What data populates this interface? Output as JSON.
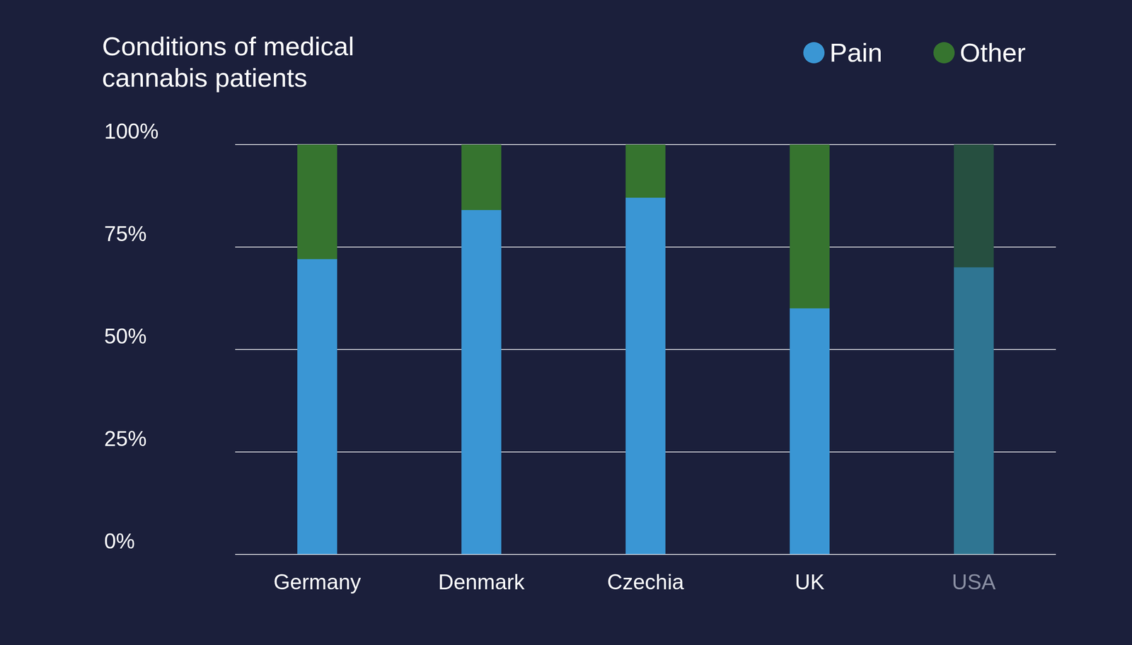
{
  "chart_data": {
    "type": "bar",
    "title": "Conditions of medical cannabis patients",
    "categories": [
      "Germany",
      "Denmark",
      "Czechia",
      "UK",
      "USA"
    ],
    "series": [
      {
        "name": "Pain",
        "values": [
          72,
          84,
          87,
          60,
          70
        ],
        "colors": [
          "#3a96d4",
          "#3a96d4",
          "#3a96d4",
          "#3a96d4",
          "#2f7592"
        ]
      },
      {
        "name": "Other",
        "values": [
          28,
          16,
          13,
          40,
          30
        ],
        "colors": [
          "#36742f",
          "#36742f",
          "#36742f",
          "#36742f",
          "#264f40"
        ]
      }
    ],
    "stacked": true,
    "grid": true,
    "legend": "top right",
    "ylim": [
      0,
      100
    ],
    "yticks": [
      {
        "value": 0,
        "label": "0%"
      },
      {
        "value": 25,
        "label": "25%"
      },
      {
        "value": 50,
        "label": "50%"
      },
      {
        "value": 75,
        "label": "75%"
      },
      {
        "value": 100,
        "label": "100%"
      }
    ]
  }
}
